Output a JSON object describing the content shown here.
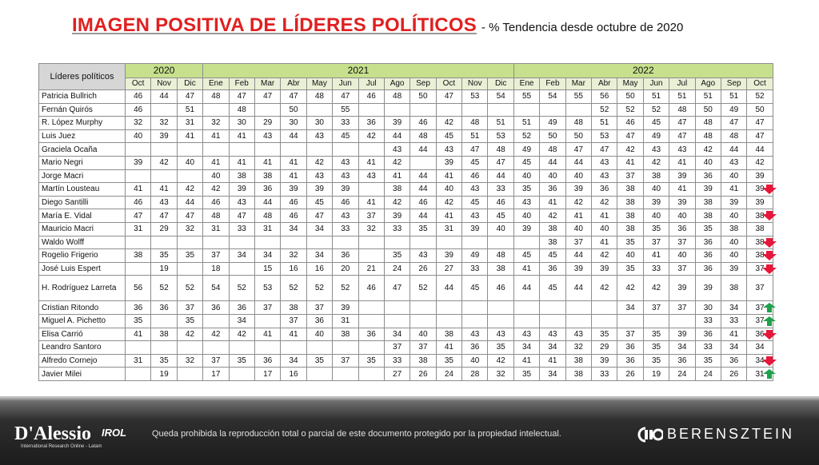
{
  "title": {
    "main": "IMAGEN POSITIVA DE LÍDERES POLÍTICOS",
    "sub": "- % Tendencia desde octubre de 2020"
  },
  "colors": {
    "title": "#e02020",
    "year_header": "#c7e08d",
    "down_arrow": "#e8163a",
    "up_arrow": "#1ea14b"
  },
  "chart_data": {
    "type": "table",
    "row_header": "Líderes políticos",
    "years": [
      {
        "label": "2020",
        "span": 3
      },
      {
        "label": "2021",
        "span": 12
      },
      {
        "label": "2022",
        "span": 10
      }
    ],
    "months": [
      "Oct",
      "Nov",
      "Dic",
      "Ene",
      "Feb",
      "Mar",
      "Abr",
      "May",
      "Jun",
      "Jul",
      "Ago",
      "Sep",
      "Oct",
      "Nov",
      "Dic",
      "Ene",
      "Feb",
      "Mar",
      "Abr",
      "May",
      "Jun",
      "Jul",
      "Ago",
      "Sep",
      "Oct"
    ],
    "rows": [
      {
        "name": "Patricia Bullrich",
        "values": [
          "46",
          "44",
          "47",
          "48",
          "47",
          "47",
          "47",
          "48",
          "47",
          "46",
          "48",
          "50",
          "47",
          "53",
          "54",
          "55",
          "54",
          "55",
          "56",
          "50",
          "51",
          "51",
          "51",
          "51",
          "52"
        ],
        "trend": ""
      },
      {
        "name": "Fernán Quirós",
        "values": [
          "46",
          "",
          "51",
          "",
          "48",
          "",
          "50",
          "",
          "55",
          "",
          "",
          "",
          "",
          "",
          "",
          "",
          "",
          "",
          "52",
          "52",
          "52",
          "48",
          "50",
          "49",
          "50"
        ],
        "trend": ""
      },
      {
        "name": "R. López Murphy",
        "values": [
          "32",
          "32",
          "31",
          "32",
          "30",
          "29",
          "30",
          "30",
          "33",
          "36",
          "39",
          "46",
          "42",
          "48",
          "51",
          "51",
          "49",
          "48",
          "51",
          "46",
          "45",
          "47",
          "48",
          "47",
          "47"
        ],
        "trend": ""
      },
      {
        "name": "Luis Juez",
        "values": [
          "40",
          "39",
          "41",
          "41",
          "41",
          "43",
          "44",
          "43",
          "45",
          "42",
          "44",
          "48",
          "45",
          "51",
          "53",
          "52",
          "50",
          "50",
          "53",
          "47",
          "49",
          "47",
          "48",
          "48",
          "47"
        ],
        "trend": ""
      },
      {
        "name": "Graciela Ocaña",
        "values": [
          "",
          "",
          "",
          "",
          "",
          "",
          "",
          "",
          "",
          "",
          "43",
          "44",
          "43",
          "47",
          "48",
          "49",
          "48",
          "47",
          "47",
          "42",
          "43",
          "43",
          "42",
          "44",
          "44"
        ],
        "trend": ""
      },
      {
        "name": "Mario Negri",
        "values": [
          "39",
          "42",
          "40",
          "41",
          "41",
          "41",
          "41",
          "42",
          "43",
          "41",
          "42",
          "",
          "39",
          "45",
          "47",
          "45",
          "44",
          "44",
          "43",
          "41",
          "42",
          "41",
          "40",
          "43",
          "42"
        ],
        "trend": ""
      },
      {
        "name": "Jorge Macri",
        "values": [
          "",
          "",
          "",
          "40",
          "38",
          "38",
          "41",
          "43",
          "43",
          "43",
          "41",
          "44",
          "41",
          "46",
          "44",
          "40",
          "40",
          "40",
          "43",
          "37",
          "38",
          "39",
          "36",
          "40",
          "39"
        ],
        "trend": ""
      },
      {
        "name": "Martín Lousteau",
        "values": [
          "41",
          "41",
          "42",
          "42",
          "39",
          "36",
          "39",
          "39",
          "39",
          "",
          "38",
          "44",
          "40",
          "43",
          "33",
          "35",
          "36",
          "39",
          "36",
          "38",
          "40",
          "41",
          "39",
          "41",
          "39"
        ],
        "trend": "down"
      },
      {
        "name": "Diego Santilli",
        "values": [
          "46",
          "43",
          "44",
          "46",
          "43",
          "44",
          "46",
          "45",
          "46",
          "41",
          "42",
          "46",
          "42",
          "45",
          "46",
          "43",
          "41",
          "42",
          "42",
          "38",
          "39",
          "39",
          "38",
          "39",
          "39"
        ],
        "trend": ""
      },
      {
        "name": "María E. Vidal",
        "values": [
          "47",
          "47",
          "47",
          "48",
          "47",
          "48",
          "46",
          "47",
          "43",
          "37",
          "39",
          "44",
          "41",
          "43",
          "45",
          "40",
          "42",
          "41",
          "41",
          "38",
          "40",
          "40",
          "38",
          "40",
          "38"
        ],
        "trend": "down"
      },
      {
        "name": "Mauricio Macri",
        "values": [
          "31",
          "29",
          "32",
          "31",
          "33",
          "31",
          "34",
          "34",
          "33",
          "32",
          "33",
          "35",
          "31",
          "39",
          "40",
          "39",
          "38",
          "40",
          "40",
          "38",
          "35",
          "36",
          "35",
          "38",
          "38"
        ],
        "trend": ""
      },
      {
        "name": "Waldo Wolff",
        "values": [
          "",
          "",
          "",
          "",
          "",
          "",
          "",
          "",
          "",
          "",
          "",
          "",
          "",
          "",
          "",
          "",
          "38",
          "37",
          "41",
          "35",
          "37",
          "37",
          "36",
          "40",
          "38"
        ],
        "trend": "down"
      },
      {
        "name": "Rogelio Frigerio",
        "values": [
          "38",
          "35",
          "35",
          "37",
          "34",
          "34",
          "32",
          "34",
          "36",
          "",
          "35",
          "43",
          "39",
          "49",
          "48",
          "45",
          "45",
          "44",
          "42",
          "40",
          "41",
          "40",
          "36",
          "40",
          "38"
        ],
        "trend": "down"
      },
      {
        "name": "José Luis Espert",
        "values": [
          "",
          "19",
          "",
          "18",
          "",
          "15",
          "16",
          "16",
          "20",
          "21",
          "24",
          "26",
          "27",
          "33",
          "38",
          "41",
          "36",
          "39",
          "39",
          "35",
          "33",
          "37",
          "36",
          "39",
          "37"
        ],
        "trend": "down"
      },
      {
        "name": "H. Rodríguez Larreta",
        "values": [
          "56",
          "52",
          "52",
          "54",
          "52",
          "53",
          "52",
          "52",
          "52",
          "46",
          "47",
          "52",
          "44",
          "45",
          "46",
          "44",
          "45",
          "44",
          "42",
          "42",
          "42",
          "39",
          "39",
          "38",
          "37"
        ],
        "trend": ""
      },
      {
        "name": "Cristian Ritondo",
        "values": [
          "36",
          "36",
          "37",
          "36",
          "36",
          "37",
          "38",
          "37",
          "39",
          "",
          "",
          "",
          "",
          "",
          "",
          "",
          "",
          "",
          "",
          "34",
          "37",
          "37",
          "30",
          "34",
          "37"
        ],
        "trend": "up"
      },
      {
        "name": "Miguel A. Pichetto",
        "values": [
          "35",
          "",
          "35",
          "",
          "34",
          "",
          "37",
          "36",
          "31",
          "",
          "",
          "",
          "",
          "",
          "",
          "",
          "",
          "",
          "",
          "",
          "",
          "",
          "33",
          "33",
          "37"
        ],
        "trend": "up"
      },
      {
        "name": "Elisa Carrió",
        "values": [
          "41",
          "38",
          "42",
          "42",
          "42",
          "41",
          "41",
          "40",
          "38",
          "36",
          "34",
          "40",
          "38",
          "43",
          "43",
          "43",
          "43",
          "43",
          "35",
          "37",
          "35",
          "39",
          "36",
          "41",
          "36"
        ],
        "trend": "down"
      },
      {
        "name": "Leandro Santoro",
        "values": [
          "",
          "",
          "",
          "",
          "",
          "",
          "",
          "",
          "",
          "",
          "37",
          "37",
          "41",
          "36",
          "35",
          "34",
          "34",
          "32",
          "29",
          "36",
          "35",
          "34",
          "33",
          "34",
          "34"
        ],
        "trend": ""
      },
      {
        "name": "Alfredo Cornejo",
        "values": [
          "31",
          "35",
          "32",
          "37",
          "35",
          "36",
          "34",
          "35",
          "37",
          "35",
          "33",
          "38",
          "35",
          "40",
          "42",
          "41",
          "41",
          "38",
          "39",
          "36",
          "35",
          "36",
          "35",
          "36",
          "34"
        ],
        "trend": "down"
      },
      {
        "name": "Javier Milei",
        "values": [
          "",
          "19",
          "",
          "17",
          "",
          "17",
          "16",
          "",
          "",
          "",
          "27",
          "26",
          "24",
          "28",
          "32",
          "35",
          "34",
          "38",
          "33",
          "26",
          "19",
          "24",
          "24",
          "26",
          "31"
        ],
        "trend": "up"
      }
    ]
  },
  "footer": {
    "logo_main": "D'Alessio",
    "logo_irol": "IROL",
    "logo_tagline": "International Research Online - Latam",
    "legal_text": "Queda prohibida la reproducción total o parcial de este documento protegido por la propiedad intelectual.",
    "brand": "BERENSZTEIN"
  }
}
